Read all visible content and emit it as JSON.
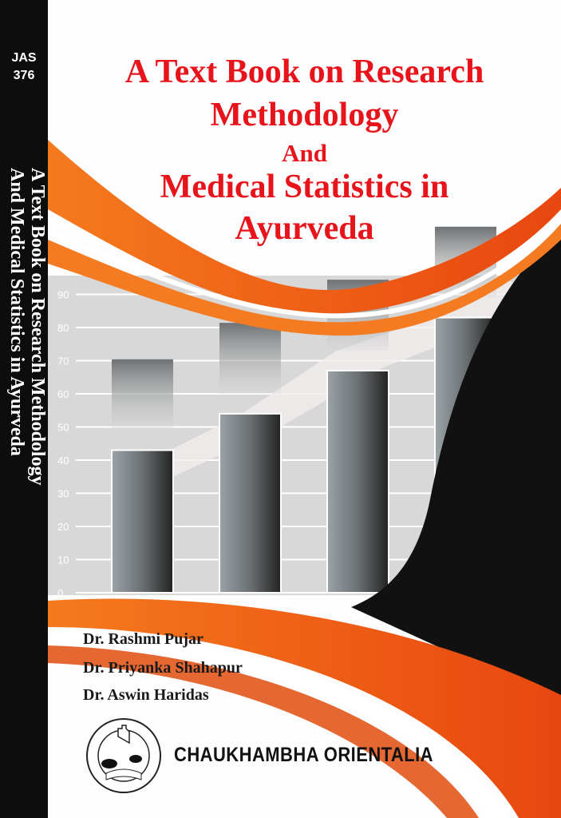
{
  "spine": {
    "code_line1": "JAS",
    "code_line2": "376",
    "title_line1": "A Text Book on Research Methodology",
    "title_line2": "And Medical Statistics in Ayurveda"
  },
  "cover": {
    "title_lines": [
      "A Text Book on Research",
      "Methodology",
      "And",
      "Medical Statistics in",
      "Ayurveda"
    ],
    "authors": [
      "Dr. Rashmi Pujar",
      "Dr. Priyanka Shahapur",
      "Dr. Aswin Haridas"
    ],
    "publisher": "CHAUKHAMBHA ORIENTALIA",
    "logo_text": "CHAUKHAMBHA ORIENTALIA VARANASI",
    "colors": {
      "title": "#e8141b",
      "orange": "#f2621a",
      "spine": "#0d0d0d",
      "chart_bg": "#d8d8d8"
    }
  },
  "chart_data": {
    "type": "bar",
    "categories": [
      "",
      "",
      "",
      ""
    ],
    "values": [
      43,
      54,
      67,
      83
    ],
    "ylim": [
      0,
      90
    ],
    "yticks": [
      0,
      10,
      20,
      30,
      40,
      50,
      60,
      70,
      80,
      90
    ],
    "grid": true,
    "title": "",
    "xlabel": "",
    "ylabel": ""
  }
}
